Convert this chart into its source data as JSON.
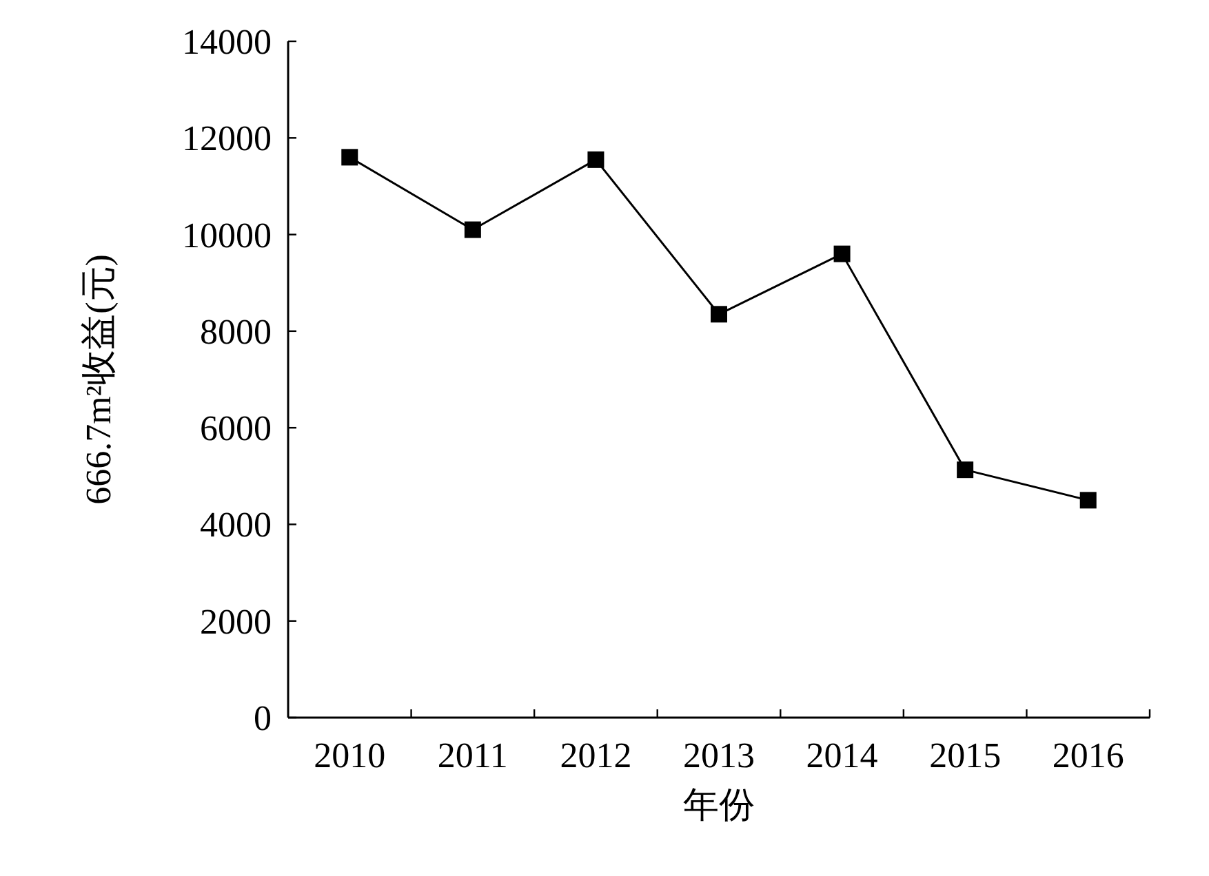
{
  "chart_data": {
    "type": "line",
    "xlabel": "年份",
    "ylabel": "666.7m²收益(元)",
    "categories": [
      "2010",
      "2011",
      "2012",
      "2013",
      "2014",
      "2015",
      "2016"
    ],
    "series": [
      {
        "color": "#000000",
        "values": [
          11600,
          10100,
          11550,
          8350,
          9600,
          5130,
          4500
        ]
      }
    ],
    "ylim": [
      0,
      14000
    ],
    "yticks": [
      0,
      2000,
      4000,
      6000,
      8000,
      10000,
      12000,
      14000
    ],
    "marker": "square",
    "line_style": "solid",
    "grid": false
  }
}
